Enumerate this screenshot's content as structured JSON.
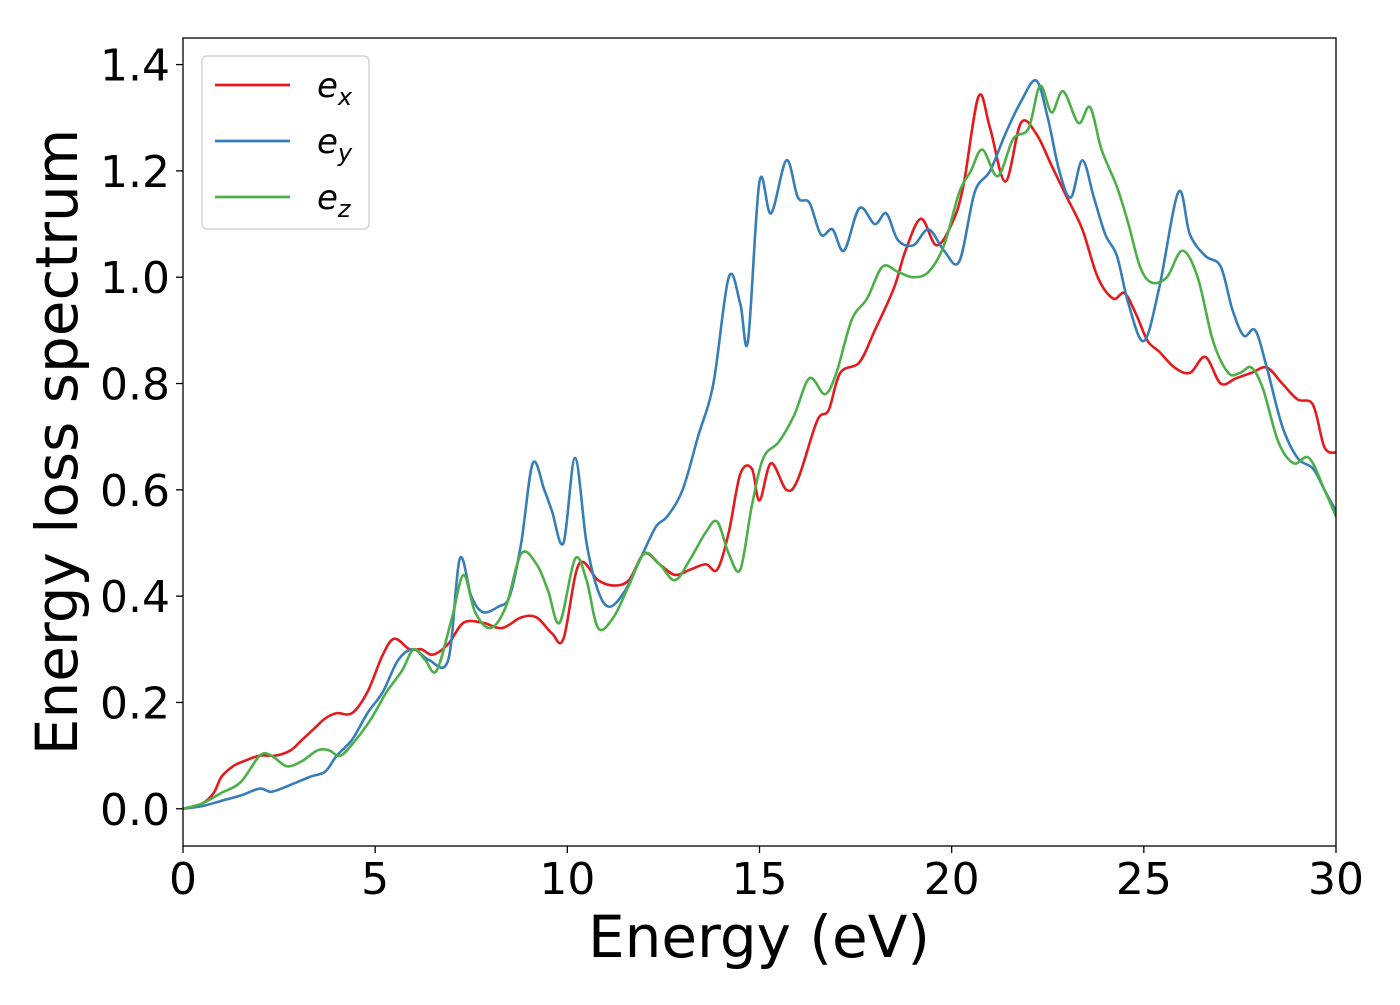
{
  "chart_data": {
    "type": "line",
    "title": "",
    "xlabel": "Energy (eV)",
    "ylabel": "Energy loss spectrum",
    "xlim": [
      0,
      30
    ],
    "ylim": [
      -0.07,
      1.45
    ],
    "x_ticks": [
      0,
      5,
      10,
      15,
      20,
      25,
      30
    ],
    "x_tick_labels": [
      "0",
      "5",
      "10",
      "15",
      "20",
      "25",
      "30"
    ],
    "y_ticks": [
      0.0,
      0.2,
      0.4,
      0.6,
      0.8,
      1.0,
      1.2,
      1.4
    ],
    "y_tick_labels": [
      "0.0",
      "0.2",
      "0.4",
      "0.6",
      "0.8",
      "1.0",
      "1.2",
      "1.4"
    ],
    "grid": false,
    "legend_position": "top-left",
    "series": [
      {
        "name": "e",
        "subscript": "x",
        "color": "#e41a1c",
        "points": [
          [
            0,
            0.0
          ],
          [
            0.5,
            0.01
          ],
          [
            0.8,
            0.03
          ],
          [
            1.0,
            0.06
          ],
          [
            1.3,
            0.08
          ],
          [
            1.6,
            0.09
          ],
          [
            2.0,
            0.1
          ],
          [
            2.4,
            0.1
          ],
          [
            2.8,
            0.11
          ],
          [
            3.1,
            0.13
          ],
          [
            3.4,
            0.15
          ],
          [
            3.7,
            0.17
          ],
          [
            4.0,
            0.18
          ],
          [
            4.4,
            0.18
          ],
          [
            4.8,
            0.22
          ],
          [
            5.2,
            0.29
          ],
          [
            5.5,
            0.32
          ],
          [
            5.9,
            0.3
          ],
          [
            6.2,
            0.3
          ],
          [
            6.5,
            0.29
          ],
          [
            6.9,
            0.31
          ],
          [
            7.3,
            0.35
          ],
          [
            7.8,
            0.35
          ],
          [
            8.3,
            0.34
          ],
          [
            8.8,
            0.36
          ],
          [
            9.2,
            0.36
          ],
          [
            9.6,
            0.33
          ],
          [
            9.9,
            0.32
          ],
          [
            10.3,
            0.46
          ],
          [
            10.8,
            0.43
          ],
          [
            11.2,
            0.42
          ],
          [
            11.6,
            0.43
          ],
          [
            12.0,
            0.48
          ],
          [
            12.4,
            0.46
          ],
          [
            12.8,
            0.44
          ],
          [
            13.2,
            0.45
          ],
          [
            13.6,
            0.46
          ],
          [
            13.9,
            0.45
          ],
          [
            14.2,
            0.52
          ],
          [
            14.5,
            0.63
          ],
          [
            14.8,
            0.64
          ],
          [
            15.0,
            0.58
          ],
          [
            15.3,
            0.65
          ],
          [
            15.7,
            0.6
          ],
          [
            16.0,
            0.62
          ],
          [
            16.5,
            0.73
          ],
          [
            16.8,
            0.75
          ],
          [
            17.1,
            0.82
          ],
          [
            17.6,
            0.84
          ],
          [
            18.0,
            0.9
          ],
          [
            18.5,
            0.98
          ],
          [
            18.8,
            1.05
          ],
          [
            19.2,
            1.11
          ],
          [
            19.6,
            1.06
          ],
          [
            20.0,
            1.1
          ],
          [
            20.3,
            1.17
          ],
          [
            20.7,
            1.34
          ],
          [
            21.0,
            1.28
          ],
          [
            21.4,
            1.18
          ],
          [
            21.8,
            1.29
          ],
          [
            22.2,
            1.27
          ],
          [
            22.6,
            1.21
          ],
          [
            23.0,
            1.15
          ],
          [
            23.4,
            1.09
          ],
          [
            23.8,
            1.0
          ],
          [
            24.2,
            0.96
          ],
          [
            24.5,
            0.97
          ],
          [
            24.8,
            0.93
          ],
          [
            25.1,
            0.88
          ],
          [
            25.4,
            0.86
          ],
          [
            25.8,
            0.83
          ],
          [
            26.2,
            0.82
          ],
          [
            26.6,
            0.85
          ],
          [
            27.0,
            0.8
          ],
          [
            27.4,
            0.81
          ],
          [
            27.8,
            0.82
          ],
          [
            28.2,
            0.83
          ],
          [
            28.6,
            0.8
          ],
          [
            29.0,
            0.77
          ],
          [
            29.4,
            0.76
          ],
          [
            29.7,
            0.68
          ],
          [
            30.0,
            0.67
          ]
        ]
      },
      {
        "name": "e",
        "subscript": "y",
        "color": "#377eb8",
        "points": [
          [
            0,
            0.0
          ],
          [
            0.5,
            0.005
          ],
          [
            1.0,
            0.015
          ],
          [
            1.5,
            0.025
          ],
          [
            2.0,
            0.038
          ],
          [
            2.3,
            0.032
          ],
          [
            2.8,
            0.045
          ],
          [
            3.3,
            0.06
          ],
          [
            3.7,
            0.07
          ],
          [
            4.0,
            0.1
          ],
          [
            4.4,
            0.13
          ],
          [
            4.8,
            0.18
          ],
          [
            5.2,
            0.22
          ],
          [
            5.6,
            0.28
          ],
          [
            6.0,
            0.3
          ],
          [
            6.4,
            0.28
          ],
          [
            6.9,
            0.28
          ],
          [
            7.2,
            0.47
          ],
          [
            7.5,
            0.4
          ],
          [
            7.8,
            0.37
          ],
          [
            8.2,
            0.38
          ],
          [
            8.5,
            0.4
          ],
          [
            8.8,
            0.5
          ],
          [
            9.1,
            0.65
          ],
          [
            9.4,
            0.6
          ],
          [
            9.6,
            0.56
          ],
          [
            9.9,
            0.5
          ],
          [
            10.2,
            0.66
          ],
          [
            10.5,
            0.5
          ],
          [
            10.8,
            0.41
          ],
          [
            11.1,
            0.38
          ],
          [
            11.5,
            0.41
          ],
          [
            11.9,
            0.47
          ],
          [
            12.3,
            0.53
          ],
          [
            12.6,
            0.55
          ],
          [
            13.0,
            0.6
          ],
          [
            13.4,
            0.7
          ],
          [
            13.8,
            0.8
          ],
          [
            14.2,
            1.0
          ],
          [
            14.5,
            0.95
          ],
          [
            14.7,
            0.88
          ],
          [
            15.0,
            1.18
          ],
          [
            15.3,
            1.12
          ],
          [
            15.7,
            1.22
          ],
          [
            16.0,
            1.15
          ],
          [
            16.3,
            1.14
          ],
          [
            16.6,
            1.08
          ],
          [
            16.9,
            1.09
          ],
          [
            17.2,
            1.05
          ],
          [
            17.6,
            1.13
          ],
          [
            18.0,
            1.1
          ],
          [
            18.3,
            1.12
          ],
          [
            18.6,
            1.07
          ],
          [
            19.0,
            1.06
          ],
          [
            19.4,
            1.09
          ],
          [
            19.8,
            1.05
          ],
          [
            20.2,
            1.03
          ],
          [
            20.6,
            1.16
          ],
          [
            21.0,
            1.2
          ],
          [
            21.4,
            1.27
          ],
          [
            21.8,
            1.33
          ],
          [
            22.2,
            1.37
          ],
          [
            22.5,
            1.3
          ],
          [
            22.8,
            1.2
          ],
          [
            23.1,
            1.15
          ],
          [
            23.4,
            1.22
          ],
          [
            23.7,
            1.15
          ],
          [
            24.0,
            1.08
          ],
          [
            24.3,
            1.04
          ],
          [
            24.6,
            0.95
          ],
          [
            25.0,
            0.88
          ],
          [
            25.4,
            0.98
          ],
          [
            25.9,
            1.16
          ],
          [
            26.2,
            1.08
          ],
          [
            26.6,
            1.04
          ],
          [
            27.0,
            1.02
          ],
          [
            27.3,
            0.94
          ],
          [
            27.6,
            0.89
          ],
          [
            27.9,
            0.9
          ],
          [
            28.2,
            0.83
          ],
          [
            28.6,
            0.72
          ],
          [
            29.0,
            0.66
          ],
          [
            29.4,
            0.64
          ],
          [
            29.7,
            0.6
          ],
          [
            30.0,
            0.56
          ]
        ]
      },
      {
        "name": "e",
        "subscript": "z",
        "color": "#4daf4a",
        "points": [
          [
            0,
            0.0
          ],
          [
            0.5,
            0.01
          ],
          [
            1.0,
            0.03
          ],
          [
            1.5,
            0.05
          ],
          [
            2.0,
            0.1
          ],
          [
            2.3,
            0.1
          ],
          [
            2.7,
            0.08
          ],
          [
            3.1,
            0.09
          ],
          [
            3.5,
            0.11
          ],
          [
            3.8,
            0.11
          ],
          [
            4.1,
            0.1
          ],
          [
            4.5,
            0.13
          ],
          [
            4.9,
            0.17
          ],
          [
            5.3,
            0.22
          ],
          [
            5.7,
            0.26
          ],
          [
            6.0,
            0.3
          ],
          [
            6.3,
            0.28
          ],
          [
            6.6,
            0.26
          ],
          [
            7.0,
            0.36
          ],
          [
            7.3,
            0.44
          ],
          [
            7.6,
            0.37
          ],
          [
            8.0,
            0.34
          ],
          [
            8.4,
            0.38
          ],
          [
            8.8,
            0.48
          ],
          [
            9.2,
            0.46
          ],
          [
            9.5,
            0.41
          ],
          [
            9.8,
            0.35
          ],
          [
            10.2,
            0.47
          ],
          [
            10.5,
            0.43
          ],
          [
            10.8,
            0.34
          ],
          [
            11.2,
            0.36
          ],
          [
            11.6,
            0.42
          ],
          [
            12.0,
            0.48
          ],
          [
            12.4,
            0.46
          ],
          [
            12.8,
            0.43
          ],
          [
            13.2,
            0.47
          ],
          [
            13.6,
            0.52
          ],
          [
            13.9,
            0.54
          ],
          [
            14.2,
            0.48
          ],
          [
            14.5,
            0.45
          ],
          [
            14.8,
            0.57
          ],
          [
            15.1,
            0.66
          ],
          [
            15.5,
            0.69
          ],
          [
            15.9,
            0.74
          ],
          [
            16.3,
            0.81
          ],
          [
            16.7,
            0.78
          ],
          [
            17.0,
            0.82
          ],
          [
            17.4,
            0.92
          ],
          [
            17.8,
            0.96
          ],
          [
            18.2,
            1.02
          ],
          [
            18.6,
            1.01
          ],
          [
            19.0,
            1.0
          ],
          [
            19.4,
            1.01
          ],
          [
            19.8,
            1.06
          ],
          [
            20.2,
            1.16
          ],
          [
            20.5,
            1.2
          ],
          [
            20.8,
            1.24
          ],
          [
            21.2,
            1.19
          ],
          [
            21.6,
            1.26
          ],
          [
            22.0,
            1.28
          ],
          [
            22.3,
            1.36
          ],
          [
            22.6,
            1.31
          ],
          [
            22.9,
            1.35
          ],
          [
            23.3,
            1.29
          ],
          [
            23.6,
            1.32
          ],
          [
            23.9,
            1.24
          ],
          [
            24.3,
            1.17
          ],
          [
            24.6,
            1.1
          ],
          [
            24.9,
            1.02
          ],
          [
            25.2,
            0.99
          ],
          [
            25.6,
            1.0
          ],
          [
            26.0,
            1.05
          ],
          [
            26.4,
            1.0
          ],
          [
            26.8,
            0.88
          ],
          [
            27.2,
            0.82
          ],
          [
            27.5,
            0.82
          ],
          [
            27.8,
            0.83
          ],
          [
            28.1,
            0.79
          ],
          [
            28.5,
            0.69
          ],
          [
            28.9,
            0.65
          ],
          [
            29.3,
            0.66
          ],
          [
            29.7,
            0.6
          ],
          [
            30.0,
            0.55
          ]
        ]
      }
    ]
  }
}
